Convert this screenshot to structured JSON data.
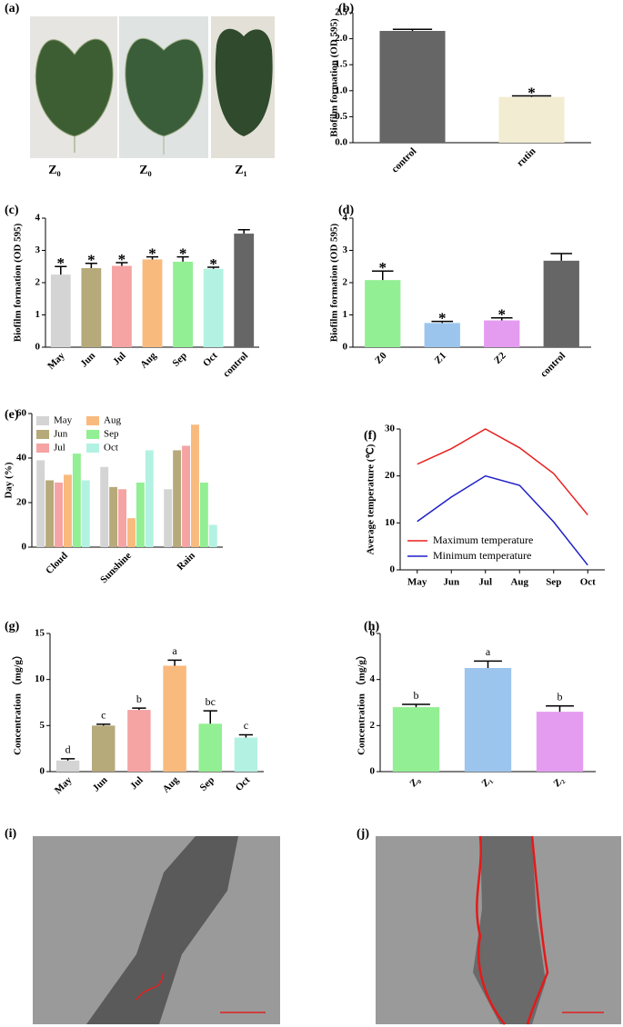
{
  "images": [
    {
      "label": "(a)",
      "captions": [
        "Z₀",
        "Z₀",
        "Z₁"
      ]
    },
    {
      "label": "(i)"
    },
    {
      "label": "(j)"
    }
  ],
  "chart_data": [
    {
      "label": "(b)",
      "type": "bar",
      "ylabel": "Biofilm formation (OD 595)",
      "categories": [
        "control",
        "rutin"
      ],
      "values": [
        2.15,
        0.88
      ],
      "errors": [
        0.03,
        0.02
      ],
      "annotations": [
        null,
        "*"
      ],
      "colors": [
        "#666666",
        "#f2ecd3"
      ],
      "ylim": [
        0,
        2.5
      ],
      "yticks": [
        {
          "value": 0,
          "label": "0.0"
        },
        {
          "value": 0.5,
          "label": "0.5"
        },
        {
          "value": 1,
          "label": "1.0"
        },
        {
          "value": 1.5,
          "label": "1.5"
        },
        {
          "value": 2,
          "label": "2.0"
        },
        {
          "value": 2.5,
          "label": "2.5"
        }
      ]
    },
    {
      "label": "(c)",
      "type": "bar",
      "ylabel": "Biofilm formation (OD 595)",
      "categories": [
        "May",
        "Jun",
        "Jul",
        "Aug",
        "Sep",
        "Oct",
        "control"
      ],
      "values": [
        2.25,
        2.45,
        2.52,
        2.72,
        2.65,
        2.43,
        3.52
      ],
      "errors": [
        0.25,
        0.15,
        0.1,
        0.08,
        0.15,
        0.05,
        0.12
      ],
      "annotations": [
        "*",
        "*",
        "*",
        "*",
        "*",
        "*",
        null
      ],
      "colors": [
        "#d4d4d4",
        "#b6a97a",
        "#f5a3a3",
        "#f9ba7e",
        "#93ef93",
        "#b3f2e2",
        "#666666"
      ],
      "ylim": [
        0,
        4
      ],
      "yticks": [
        0,
        1,
        2,
        3,
        4
      ]
    },
    {
      "label": "(d)",
      "type": "bar",
      "ylabel": "Biofilm formation (OD 595)",
      "categories": [
        "Z0",
        "Z1",
        "Z2",
        "control"
      ],
      "values": [
        2.08,
        0.75,
        0.83,
        2.68
      ],
      "errors": [
        0.28,
        0.05,
        0.08,
        0.22
      ],
      "annotations": [
        "*",
        "*",
        "*",
        null
      ],
      "colors": [
        "#93ef93",
        "#9cc5ee",
        "#e49cf0",
        "#666666"
      ],
      "ylim": [
        0,
        4
      ],
      "yticks": [
        0,
        1,
        2,
        3,
        4
      ]
    },
    {
      "label": "(e)",
      "type": "bar",
      "ylabel": "Day (%)",
      "categories": [
        "Cloud",
        "Sunshine",
        "Rain"
      ],
      "series": [
        {
          "name": "May",
          "color": "#d4d4d4",
          "values": [
            39,
            36,
            26
          ]
        },
        {
          "name": "Jun",
          "color": "#b6a97a",
          "values": [
            30,
            27,
            43.5
          ]
        },
        {
          "name": "Jul",
          "color": "#f5a3a3",
          "values": [
            29,
            26,
            45.5
          ]
        },
        {
          "name": "Aug",
          "color": "#f9ba7e",
          "values": [
            32.5,
            13,
            55
          ]
        },
        {
          "name": "Sep",
          "color": "#93ef93",
          "values": [
            42,
            29,
            29
          ]
        },
        {
          "name": "Oct",
          "color": "#b3f2e2",
          "values": [
            30,
            43.5,
            10
          ]
        }
      ],
      "ylim": [
        0,
        60
      ],
      "yticks": [
        0,
        20,
        40,
        60
      ]
    },
    {
      "label": "(f)",
      "type": "line",
      "ylabel": "Average temperature (℃)",
      "categories": [
        "May",
        "Jun",
        "Jul",
        "Aug",
        "Sep",
        "Oct"
      ],
      "series": [
        {
          "name": "Maximum temperature",
          "color": "#e8201e",
          "values": [
            22.5,
            25.8,
            30,
            26,
            20.5,
            11.7
          ]
        },
        {
          "name": "Minimum temperature",
          "color": "#1f1fc8",
          "values": [
            10.3,
            15.5,
            20,
            18,
            10.2,
            1
          ]
        }
      ],
      "ylim": [
        0,
        30
      ],
      "yticks": [
        0,
        10,
        20,
        30
      ]
    },
    {
      "label": "(g)",
      "type": "bar",
      "ylabel": "Concentration （mg/g）",
      "categories": [
        "May",
        "Jun",
        "Jul",
        "Aug",
        "Sep",
        "Oct"
      ],
      "values": [
        1.2,
        5.0,
        6.7,
        11.5,
        5.2,
        3.7
      ],
      "errors": [
        0.2,
        0.15,
        0.2,
        0.6,
        1.4,
        0.3
      ],
      "annotations": [
        "d",
        "c",
        "b",
        "a",
        "bc",
        "c"
      ],
      "colors": [
        "#d4d4d4",
        "#b6a97a",
        "#f5a3a3",
        "#f9ba7e",
        "#93ef93",
        "#b3f2e2"
      ],
      "ylim": [
        0,
        15
      ],
      "yticks": [
        0,
        5,
        10,
        15
      ]
    },
    {
      "label": "(h)",
      "type": "bar",
      "ylabel": "Concentration （mg/g）",
      "categories": [
        "Z₀",
        "Z₁",
        "Z₂"
      ],
      "values": [
        2.8,
        4.5,
        2.6
      ],
      "errors": [
        0.12,
        0.3,
        0.25
      ],
      "annotations": [
        "b",
        "a",
        "b"
      ],
      "colors": [
        "#93ef93",
        "#9cc5ee",
        "#e49cf0"
      ],
      "ylim": [
        0,
        6
      ],
      "yticks": [
        0,
        2,
        4,
        6
      ]
    }
  ]
}
